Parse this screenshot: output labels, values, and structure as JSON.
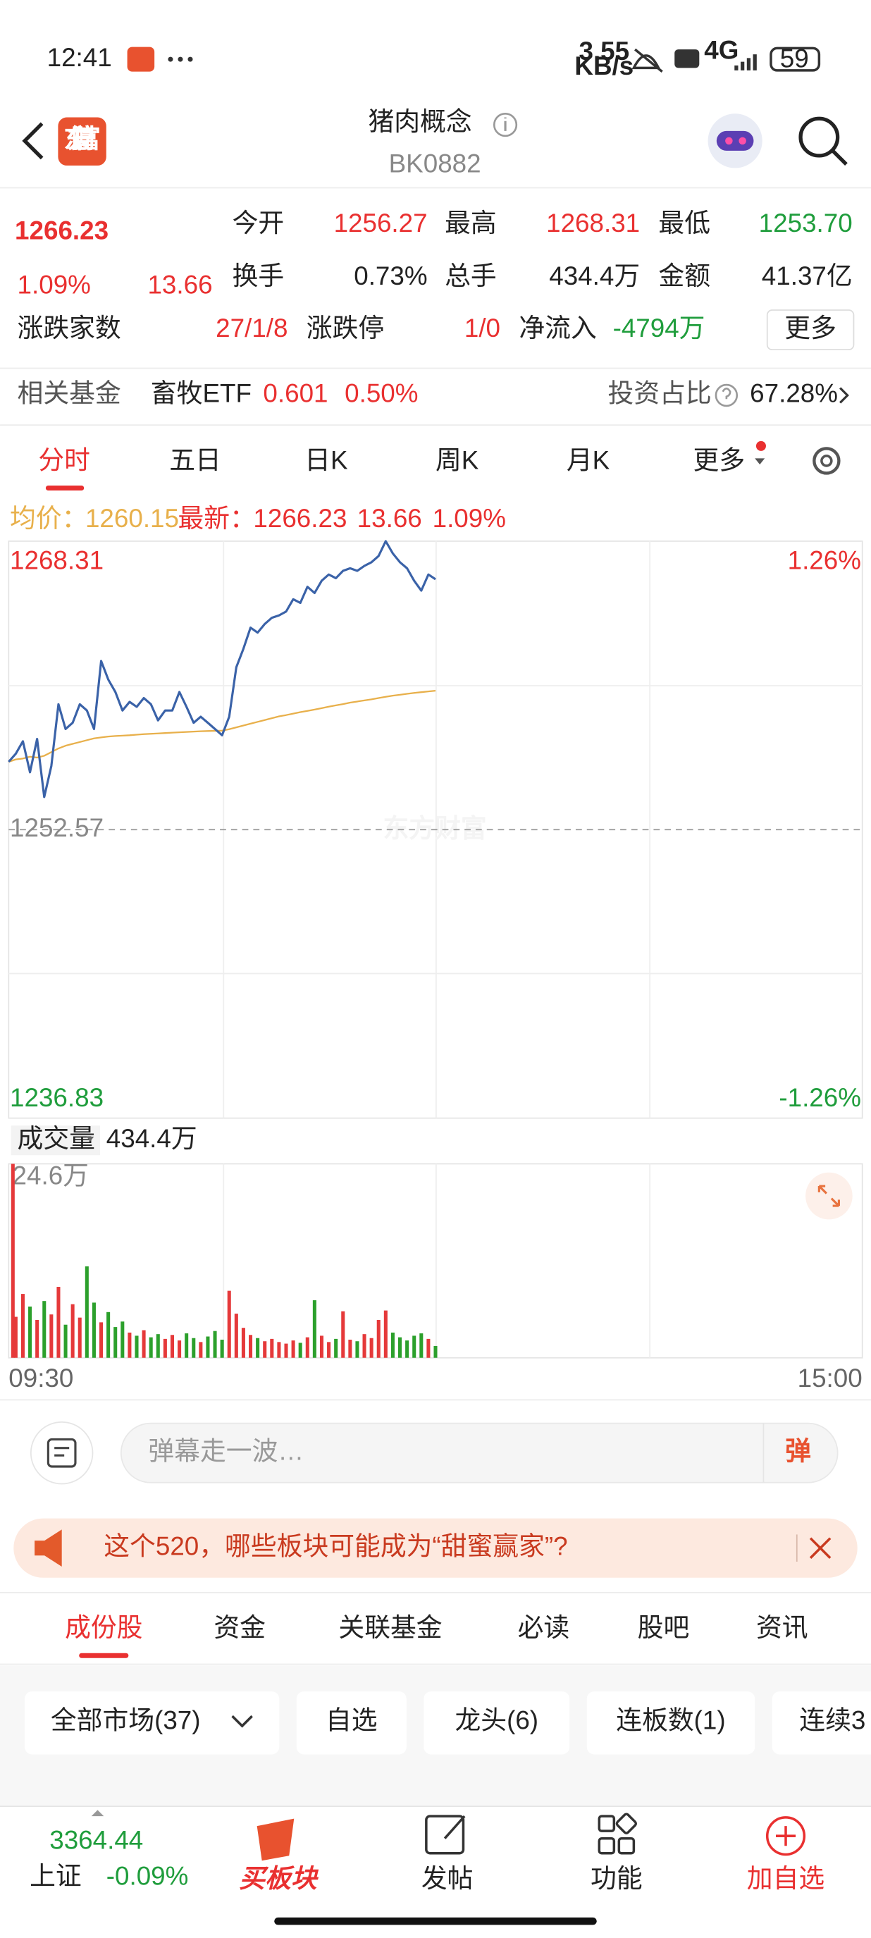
{
  "status_bar": {
    "time": "12:41",
    "net_speed": "3.55",
    "net_unit": "KB/s",
    "network": "4G",
    "battery": "59"
  },
  "header": {
    "logo": "东方财富",
    "title": "猪肉概念",
    "code": "BK0882"
  },
  "quote": {
    "price": "1266.23",
    "change_pct": "1.09%",
    "change": "13.66",
    "stats": [
      {
        "label": "今开",
        "value": "1256.27"
      },
      {
        "label": "最高",
        "value": "1268.31"
      },
      {
        "label": "最低",
        "value": "1253.70"
      },
      {
        "label": "换手",
        "value": "0.73%"
      },
      {
        "label": "总手",
        "value": "434.4万"
      },
      {
        "label": "金额",
        "value": "41.37亿"
      }
    ],
    "breadth_label": "涨跌家数",
    "breadth": "27/1/8",
    "limit_label": "涨跌停",
    "limit": "1/0",
    "netflow_label": "净流入",
    "netflow": "-4794万",
    "more": "更多"
  },
  "fund": {
    "label": "相关基金",
    "name": "畜牧ETF",
    "price": "0.601",
    "change": "0.50%",
    "ratio_label": "投资占比",
    "ratio": "67.28%"
  },
  "tabs": [
    "分时",
    "五日",
    "日K",
    "周K",
    "月K",
    "更多"
  ],
  "legend": {
    "avg_label": "均价：",
    "avg": "1260.15",
    "latest_label": "最新：",
    "latest": "1266.23",
    "change": "13.66",
    "change_pct": "1.09%"
  },
  "chart": {
    "type": "line",
    "x": [
      "09:30",
      "09:32",
      "09:34",
      "09:36",
      "09:38",
      "09:40",
      "09:42",
      "09:44",
      "09:46",
      "09:48",
      "09:50",
      "09:52",
      "09:54",
      "09:56",
      "09:58",
      "10:00",
      "10:02",
      "10:04",
      "10:06",
      "10:08",
      "10:10",
      "10:12",
      "10:14",
      "10:16",
      "10:18",
      "10:20",
      "10:22",
      "10:24",
      "10:26",
      "10:28",
      "10:30",
      "10:32",
      "10:34",
      "10:36",
      "10:38",
      "10:40",
      "10:42",
      "10:44",
      "10:46",
      "10:48",
      "10:50",
      "10:52",
      "10:54",
      "10:56",
      "10:58",
      "11:00",
      "11:02",
      "11:04",
      "11:06",
      "11:08",
      "11:10",
      "11:12",
      "11:14",
      "11:16",
      "11:18",
      "11:20",
      "11:22",
      "11:24",
      "11:26",
      "11:28",
      "11:30"
    ],
    "xlim": [
      "09:30",
      "15:00"
    ],
    "xticks": [
      "09:30",
      "15:00"
    ],
    "ylim": [
      1236.83,
      1268.31
    ],
    "yticks": [
      1236.83,
      1252.57,
      1268.31
    ],
    "y2lim": [
      -1.26,
      1.26
    ],
    "y2ticks": [
      {
        "value": -1.26,
        "label": "-1.26%"
      },
      {
        "value": 1.26,
        "label": "1.26%"
      }
    ],
    "series": [
      {
        "color": "#3a62a8",
        "values": [
          1256.27,
          1256.71,
          1257.39,
          1255.7,
          1257.52,
          1254.35,
          1256.04,
          1259.41,
          1258.06,
          1258.4,
          1259.41,
          1259.07,
          1258.06,
          1261.77,
          1260.76,
          1260.08,
          1259.07,
          1259.54,
          1259.27,
          1259.75,
          1259.41,
          1258.53,
          1259.07,
          1259.07,
          1260.08,
          1259.27,
          1258.4,
          1258.73,
          1258.4,
          1258.06,
          1257.72,
          1258.73,
          1261.43,
          1262.44,
          1263.59,
          1263.32,
          1263.79,
          1264.13,
          1264.26,
          1264.47,
          1265.14,
          1264.94,
          1265.82,
          1265.48,
          1266.15,
          1266.49,
          1266.29,
          1266.69,
          1266.83,
          1266.69,
          1266.96,
          1267.16,
          1267.5,
          1268.31,
          1267.64,
          1267.16,
          1266.83,
          1266.15,
          1265.61,
          1266.49,
          1266.23
        ]
      },
      {
        "color": "#e8b04b",
        "values": [
          1256.27,
          1256.4,
          1256.45,
          1256.55,
          1256.5,
          1256.6,
          1256.8,
          1257.0,
          1257.15,
          1257.25,
          1257.35,
          1257.45,
          1257.55,
          1257.6,
          1257.65,
          1257.68,
          1257.7,
          1257.72,
          1257.75,
          1257.78,
          1257.8,
          1257.82,
          1257.84,
          1257.86,
          1257.88,
          1257.9,
          1257.92,
          1257.94,
          1257.95,
          1257.96,
          1257.97,
          1258.05,
          1258.15,
          1258.25,
          1258.35,
          1258.45,
          1258.55,
          1258.65,
          1258.75,
          1258.82,
          1258.9,
          1258.98,
          1259.05,
          1259.12,
          1259.2,
          1259.28,
          1259.35,
          1259.42,
          1259.5,
          1259.56,
          1259.62,
          1259.68,
          1259.75,
          1259.82,
          1259.88,
          1259.93,
          1259.98,
          1260.03,
          1260.07,
          1260.11,
          1260.15
        ]
      }
    ]
  },
  "watermark": "东方财富",
  "volume": {
    "type": "bar",
    "label": "成交量",
    "total": "434.4万",
    "ylim": [
      0,
      24.6
    ],
    "yticks": [
      {
        "value": 24.6,
        "label": "24.6万"
      }
    ],
    "up_color": "#e5393a",
    "down_color": "#2ca02c",
    "values": [
      24.6,
      5.2,
      8.1,
      6.5,
      4.8,
      7.2,
      5.5,
      9.0,
      4.2,
      6.8,
      5.1,
      11.6,
      7.0,
      4.5,
      5.8,
      3.9,
      4.6,
      3.2,
      2.8,
      3.5,
      2.6,
      3.0,
      2.4,
      2.9,
      2.2,
      3.1,
      2.5,
      2.0,
      2.7,
      3.4,
      2.3,
      8.5,
      5.6,
      3.8,
      2.9,
      2.5,
      2.1,
      2.4,
      2.0,
      1.8,
      2.2,
      1.9,
      2.6,
      7.3,
      2.8,
      2.0,
      2.4,
      5.9,
      2.3,
      2.1,
      3.0,
      2.5,
      4.8,
      6.0,
      3.2,
      2.6,
      2.2,
      2.8,
      3.1,
      2.4,
      1.5
    ]
  },
  "comment": {
    "placeholder": "弹幕走一波…",
    "button": "弹"
  },
  "banner": {
    "text": "这个520，哪些板块可能成为“甜蜜赢家”?"
  },
  "sub_tabs": [
    "成份股",
    "资金",
    "关联基金",
    "必读",
    "股吧",
    "资讯"
  ],
  "filters": [
    "全部市场(37)",
    "自选",
    "龙头(6)",
    "连板数(1)",
    "连续3"
  ],
  "bottom_nav": {
    "index_value": "3364.44",
    "index_name": "上证",
    "index_change": "-0.09%",
    "items": [
      "买板块",
      "发帖",
      "功能",
      "加自选"
    ]
  }
}
